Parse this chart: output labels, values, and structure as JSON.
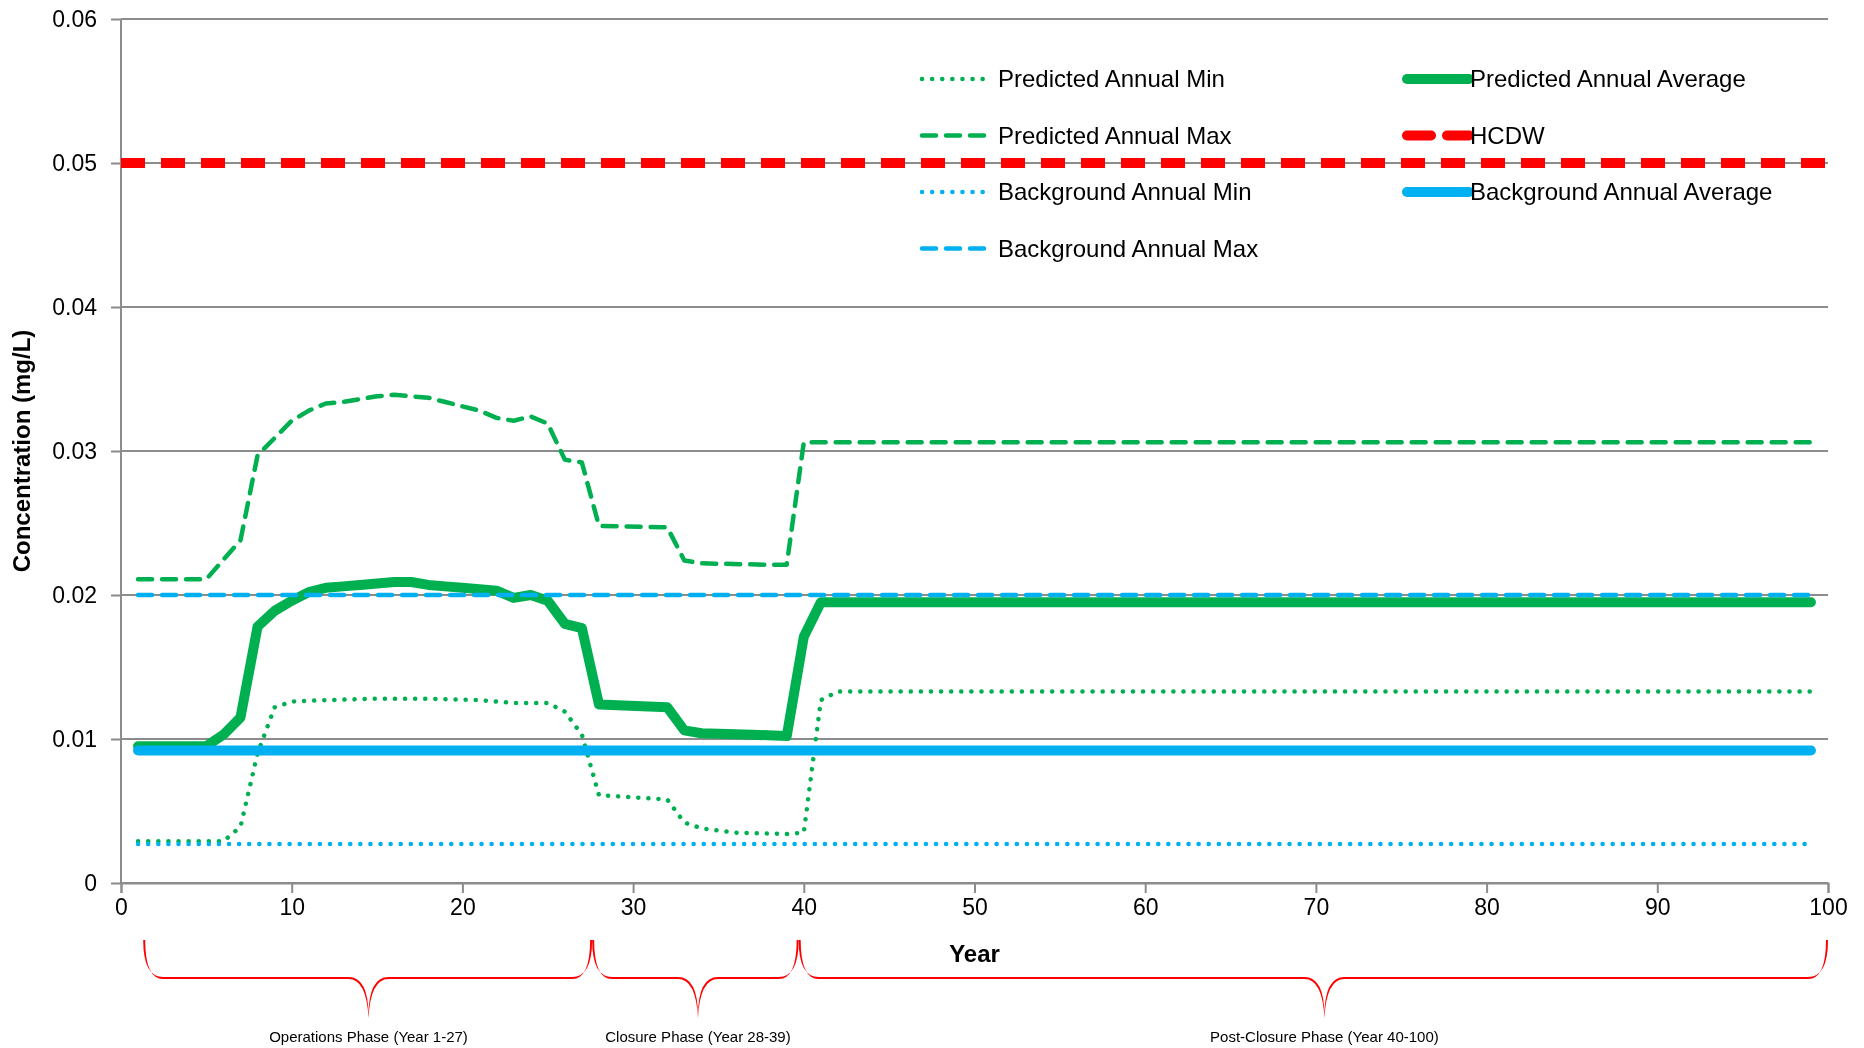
{
  "chart_data": {
    "type": "line",
    "xlabel": "Year",
    "ylabel": "Concentration (mg/L)",
    "xlim": [
      0,
      100
    ],
    "xticks": [
      0,
      10,
      20,
      30,
      40,
      50,
      60,
      70,
      80,
      90,
      100
    ],
    "ylim": [
      0,
      0.06
    ],
    "yticks": [
      0,
      0.01,
      0.02,
      0.03,
      0.04,
      0.05,
      0.06
    ],
    "grid": "y",
    "legend": "top right",
    "series": [
      {
        "name": "Predicted Annual Min",
        "color": "#00b050",
        "line_style": "dotted",
        "x": [
          1,
          6,
          7,
          8,
          9,
          10,
          12,
          15,
          18,
          21,
          23,
          25,
          26,
          27,
          28,
          32,
          33,
          34,
          36,
          39,
          40,
          41,
          42,
          99
        ],
        "values": [
          0.0029,
          0.0029,
          0.0039,
          0.009,
          0.0122,
          0.0126,
          0.0127,
          0.0128,
          0.0128,
          0.0127,
          0.0125,
          0.0125,
          0.0119,
          0.0103,
          0.0061,
          0.0058,
          0.0042,
          0.0038,
          0.0035,
          0.0034,
          0.0035,
          0.0127,
          0.0133,
          0.0133
        ]
      },
      {
        "name": "Predicted Annual Average",
        "color": "#00b050",
        "line_style": "solid",
        "x": [
          1,
          5,
          6,
          7,
          8,
          9,
          10,
          11,
          12,
          13,
          14,
          15,
          16,
          17,
          18,
          19,
          20,
          21,
          22,
          23,
          24,
          25,
          26,
          27,
          28,
          32,
          33,
          34,
          37,
          39,
          40,
          41,
          99
        ],
        "values": [
          0.0095,
          0.0095,
          0.0103,
          0.0115,
          0.0178,
          0.0189,
          0.0196,
          0.0202,
          0.0205,
          0.0206,
          0.0207,
          0.0208,
          0.0209,
          0.0209,
          0.0207,
          0.0206,
          0.0205,
          0.0204,
          0.0203,
          0.0198,
          0.02,
          0.0196,
          0.018,
          0.0177,
          0.0124,
          0.0122,
          0.0106,
          0.0104,
          0.0103,
          0.0102,
          0.0171,
          0.0195,
          0.0195
        ]
      },
      {
        "name": "Predicted Annual Max",
        "color": "#00b050",
        "line_style": "dashed",
        "x": [
          1,
          5,
          7,
          8,
          9,
          10,
          11,
          12,
          13,
          14,
          15,
          16,
          17,
          18,
          19,
          20,
          21,
          22,
          23,
          24,
          25,
          26,
          27,
          28,
          32,
          33,
          34,
          38,
          39,
          40,
          99
        ],
        "values": [
          0.0211,
          0.0211,
          0.0238,
          0.0297,
          0.0309,
          0.0321,
          0.0328,
          0.0333,
          0.0334,
          0.0336,
          0.0338,
          0.0339,
          0.0338,
          0.0337,
          0.0334,
          0.0331,
          0.0328,
          0.0323,
          0.0321,
          0.0324,
          0.0319,
          0.0294,
          0.0292,
          0.0248,
          0.0247,
          0.0224,
          0.0222,
          0.0221,
          0.0221,
          0.0306,
          0.0306
        ]
      },
      {
        "name": "Background Annual Min",
        "color": "#00b0f0",
        "line_style": "dotted",
        "x": [
          1,
          99
        ],
        "values": [
          0.0027,
          0.0027
        ]
      },
      {
        "name": "Background Annual Average",
        "color": "#00b0f0",
        "line_style": "solid",
        "x": [
          1,
          99
        ],
        "values": [
          0.0092,
          0.0092
        ]
      },
      {
        "name": "Background Annual Max",
        "color": "#00b0f0",
        "line_style": "dashed",
        "x": [
          1,
          99
        ],
        "values": [
          0.02,
          0.02
        ]
      }
    ],
    "ref_lines": [
      {
        "axis": "y",
        "value": 0.05,
        "label": "HCDW",
        "color": "#ff0000",
        "line_style": "dashed"
      }
    ],
    "annotations": [
      "Operations Phase (Year 1-27)",
      "Closure Phase (Year 28-39)",
      "Post-Closure Phase (Year 40-100)"
    ]
  }
}
